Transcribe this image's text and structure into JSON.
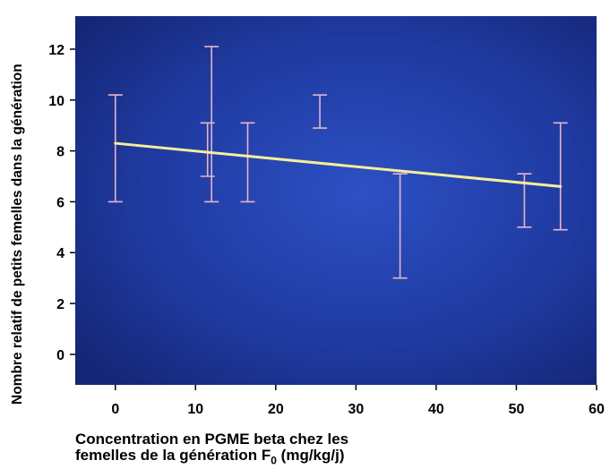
{
  "chart_data": {
    "type": "scatter",
    "ylabel": "Nombre relatif de petits femelles dans la génération",
    "xlabel_line1": "Concentration en PGME beta chez les",
    "xlabel_line2_prefix": "femelles de la génération F",
    "xlabel_subscript": "0",
    "xlabel_line2_suffix": " (mg/kg/j)",
    "x_ticks": [
      "0",
      "10",
      "20",
      "30",
      "40",
      "50",
      "60"
    ],
    "y_ticks": [
      "0",
      "2",
      "4",
      "6",
      "8",
      "10",
      "12"
    ],
    "xlim": [
      -5,
      60
    ],
    "ylim": [
      -1.2,
      13.3
    ],
    "error_bars": [
      {
        "x": 0,
        "low": 6.0,
        "high": 10.2
      },
      {
        "x": 11.5,
        "low": 7.0,
        "high": 9.1
      },
      {
        "x": 12,
        "low": 6.0,
        "high": 12.1
      },
      {
        "x": 16.5,
        "low": 6.0,
        "high": 9.1
      },
      {
        "x": 25.5,
        "low": 8.9,
        "high": 10.2
      },
      {
        "x": 35.5,
        "low": 3.0,
        "high": 7.1
      },
      {
        "x": 51,
        "low": 5.0,
        "high": 7.1
      },
      {
        "x": 55.5,
        "low": 4.9,
        "high": 9.1
      }
    ],
    "regression_line": {
      "x": [
        0,
        55.5
      ],
      "y": [
        8.3,
        6.6
      ]
    },
    "grid": false,
    "legend": "none",
    "colors": {
      "background": "#1f3aa0",
      "error_bar": "#e6b4c8",
      "trend_line": "#f7ee9a"
    }
  }
}
